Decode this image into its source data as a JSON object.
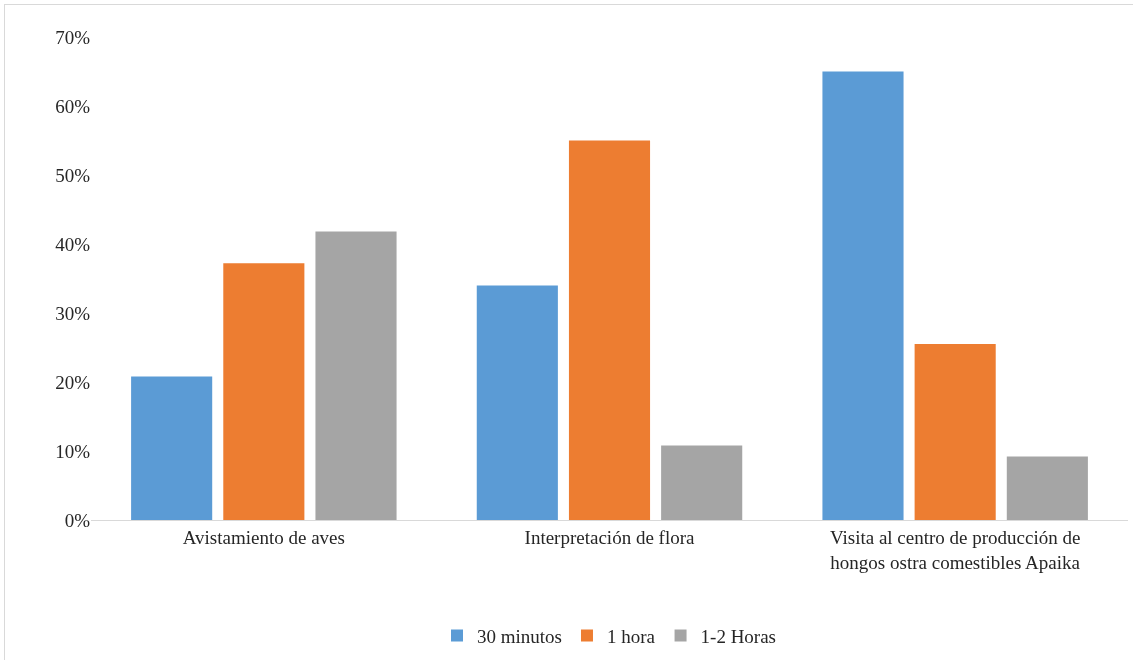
{
  "chart_data": {
    "type": "bar",
    "categories": [
      "Avistamiento de aves",
      "Interpretación de flora",
      "Visita al centro de producción de hongos ostra comestibles Apaika"
    ],
    "series": [
      {
        "name": "30 minutos",
        "color": "#5b9bd5",
        "values": [
          20.8,
          34,
          65
        ]
      },
      {
        "name": "1 hora",
        "color": "#ed7d31",
        "values": [
          37.2,
          55,
          25.5
        ]
      },
      {
        "name": "1-2 Horas",
        "color": "#a5a5a5",
        "values": [
          41.8,
          10.8,
          9.2
        ]
      }
    ],
    "ylim": [
      0,
      70
    ],
    "yticks": [
      {
        "value": 0,
        "label": "0%"
      },
      {
        "value": 10,
        "label": "10%"
      },
      {
        "value": 20,
        "label": "20%"
      },
      {
        "value": 30,
        "label": "30%"
      },
      {
        "value": 40,
        "label": "40%"
      },
      {
        "value": 50,
        "label": "50%"
      },
      {
        "value": 60,
        "label": "60%"
      },
      {
        "value": 70,
        "label": "70%"
      }
    ],
    "grid": false,
    "legend": "bottom"
  }
}
